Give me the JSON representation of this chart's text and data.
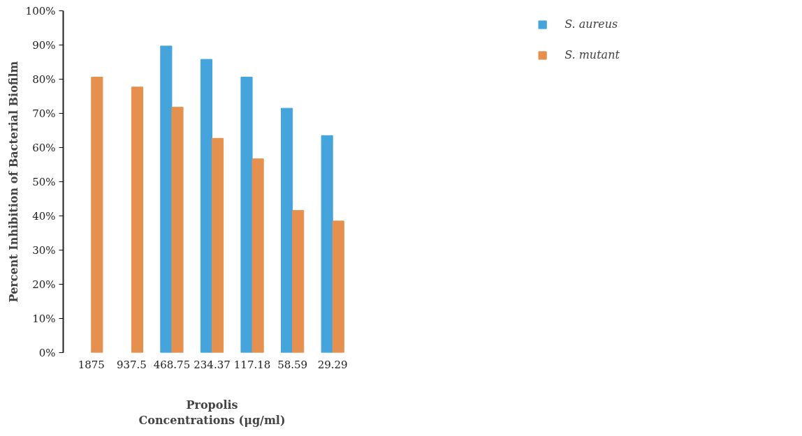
{
  "chart_data": {
    "type": "bar",
    "categories": [
      "1875",
      "937.5",
      "468.75",
      "234.37",
      "117.18",
      "58.59",
      "29.29"
    ],
    "series": [
      {
        "name": "S. aureus",
        "color": "#45a4dc",
        "values": [
          null,
          null,
          89.7,
          85.8,
          80.6,
          71.5,
          63.5
        ]
      },
      {
        "name": "S. mutant",
        "color": "#e69050",
        "values": [
          80.6,
          77.7,
          71.8,
          62.7,
          56.7,
          41.6,
          38.5
        ]
      }
    ],
    "xlabel": "Propolis\nConcentrations (μg/ml)",
    "ylabel": "Percent Inhibition of Bacterial Biofilm",
    "ylim": [
      0,
      100
    ],
    "yticks": [
      {
        "value": 0,
        "label": "0%"
      },
      {
        "value": 10,
        "label": "10%"
      },
      {
        "value": 20,
        "label": "20%"
      },
      {
        "value": 30,
        "label": "30%"
      },
      {
        "value": 40,
        "label": "40%"
      },
      {
        "value": 50,
        "label": "50%"
      },
      {
        "value": 60,
        "label": "60%"
      },
      {
        "value": 70,
        "label": "70%"
      },
      {
        "value": 80,
        "label": "80%"
      },
      {
        "value": 90,
        "label": "90%"
      },
      {
        "value": 100,
        "label": "100%"
      }
    ],
    "grid": false,
    "legend": "top right"
  }
}
